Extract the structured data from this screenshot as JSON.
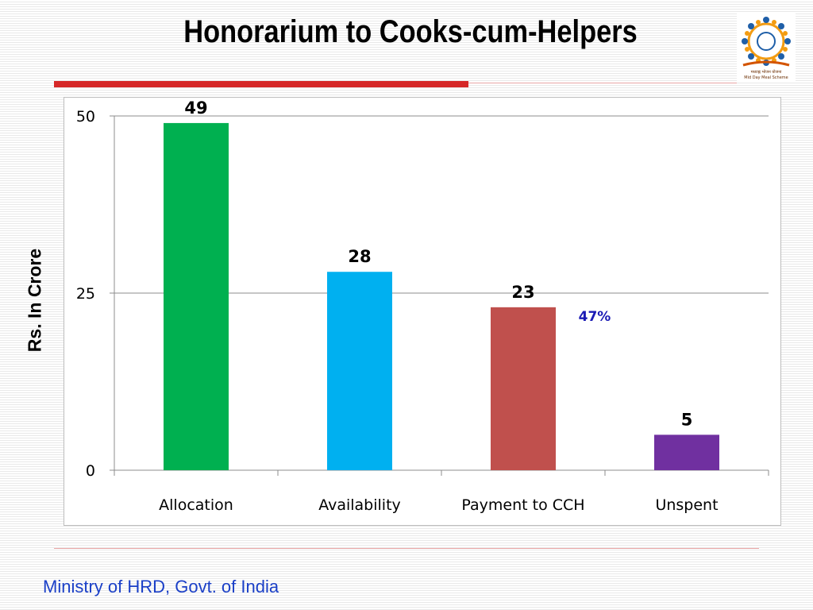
{
  "slide": {
    "title": "Honorarium to Cooks-cum-Helpers",
    "footer": "Ministry of HRD, Govt. of India",
    "logo_text_line1": "मध्याह्न भोजन योजना",
    "logo_text_line2": "Mid Day Meal Scheme"
  },
  "chart_data": {
    "type": "bar",
    "title": "Honorarium to Cooks-cum-Helpers",
    "xlabel": "",
    "ylabel": "Rs. In Crore",
    "categories": [
      "Allocation",
      "Availability",
      "Payment to CCH",
      "Unspent"
    ],
    "values": [
      49,
      28,
      23,
      5
    ],
    "data_labels": [
      "49",
      "28",
      "23",
      "5"
    ],
    "colors": [
      "#00b050",
      "#00b0f0",
      "#c0504d",
      "#7030a0"
    ],
    "ylim": [
      0,
      50
    ],
    "yticks": [
      0,
      25,
      50
    ],
    "grid": true,
    "legend": "none",
    "annotations": [
      {
        "category": "Payment to CCH",
        "text": "47%",
        "color": "#1a1ab5"
      }
    ]
  }
}
